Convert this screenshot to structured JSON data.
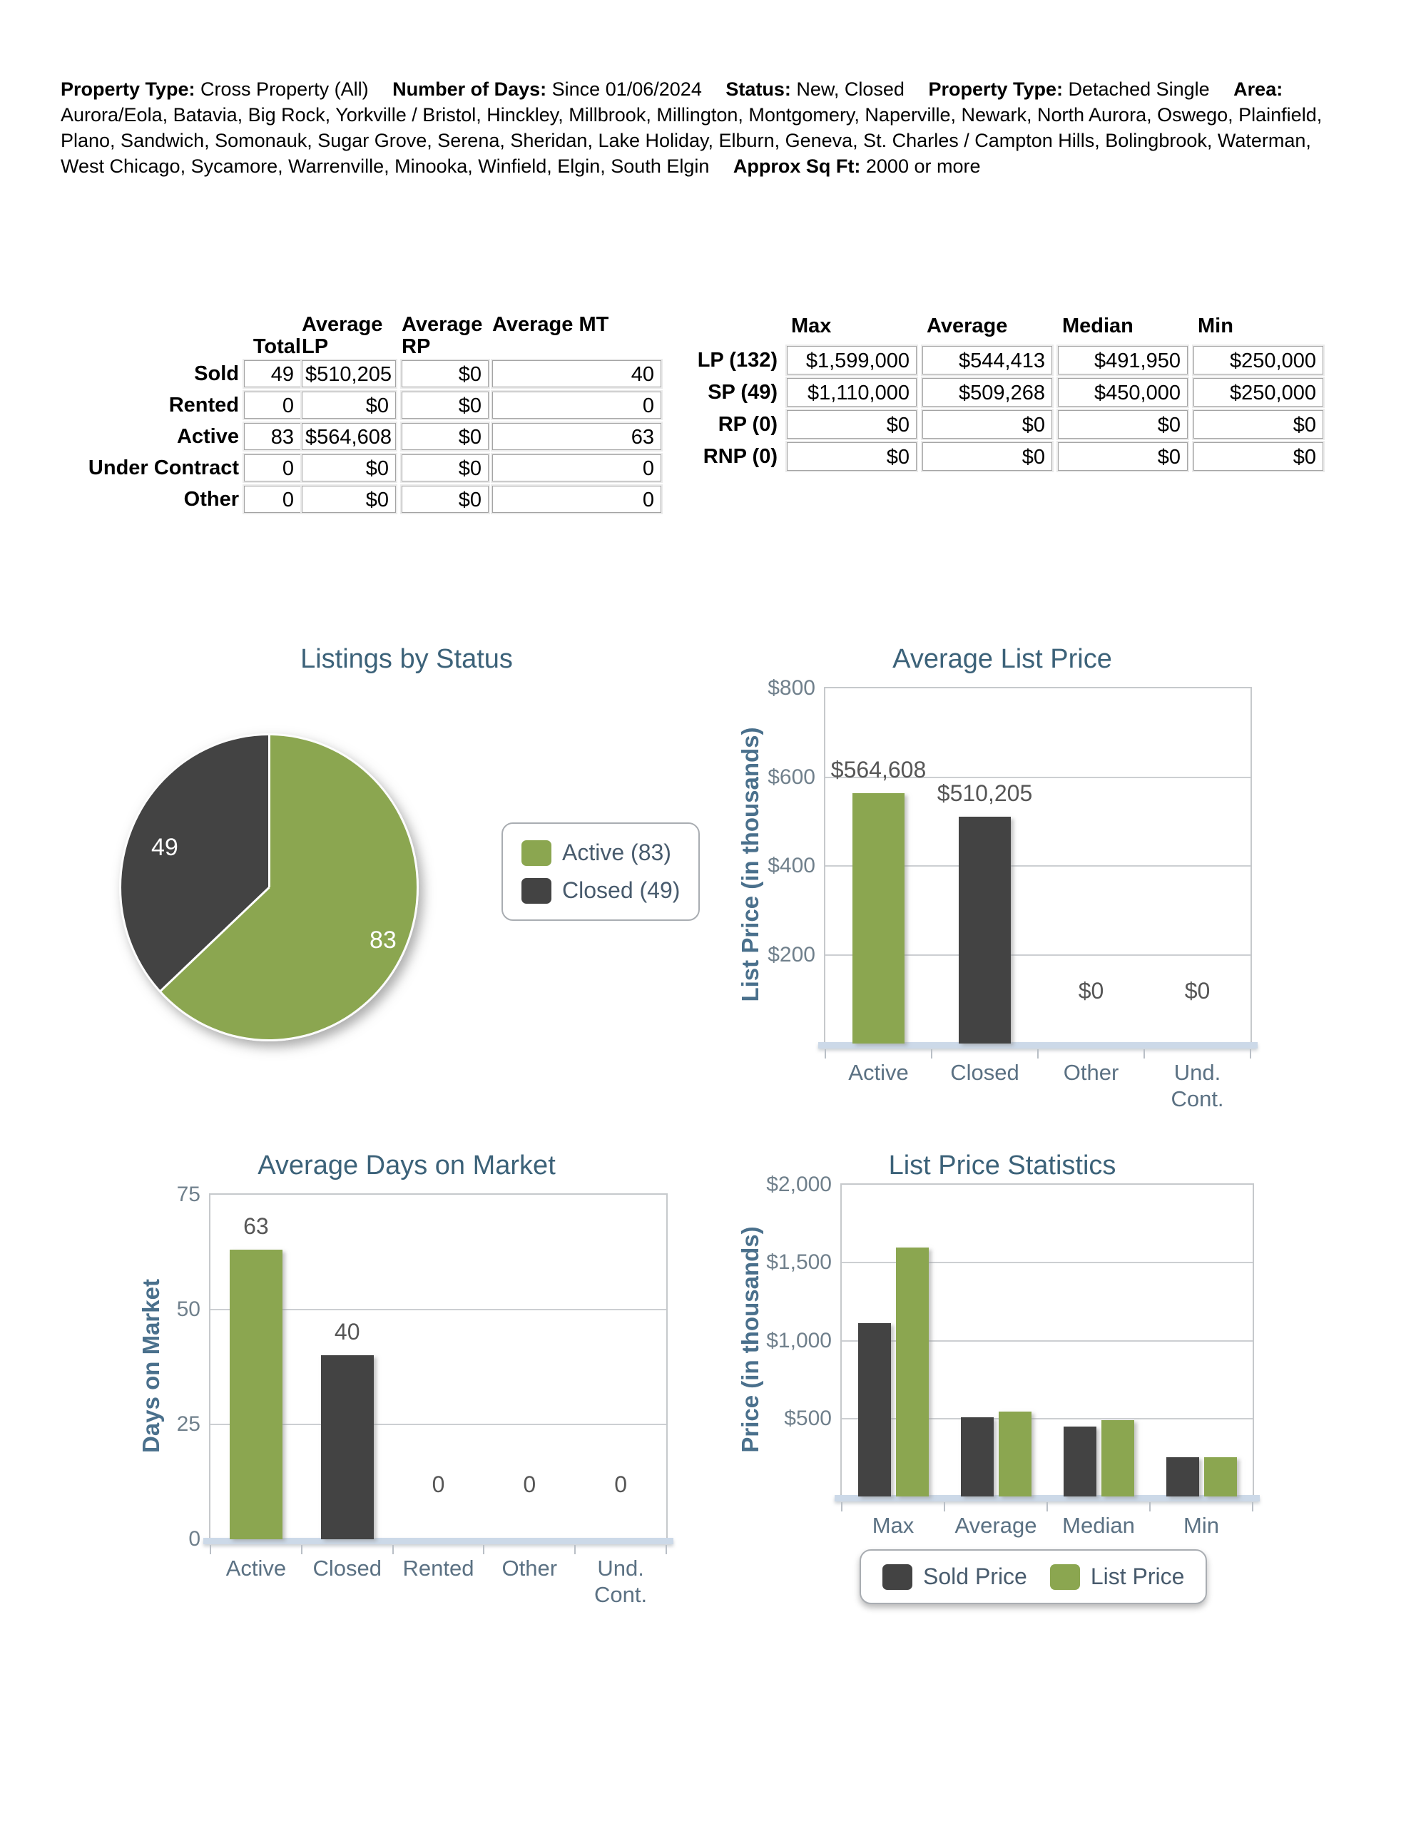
{
  "header": {
    "segments": [
      {
        "label": "Property Type:",
        "value": "Cross Property (All)"
      },
      {
        "label": "Number of Days:",
        "value": "Since 01/06/2024"
      },
      {
        "label": "Status:",
        "value": "New, Closed"
      },
      {
        "label": "Property Type:",
        "value": "Detached Single"
      },
      {
        "label": "Area:",
        "value": "Aurora/Eola, Batavia, Big Rock, Yorkville / Bristol, Hinckley, Millbrook, Millington, Montgomery, Naperville, Newark, North Aurora, Oswego, Plainfield, Plano, Sandwich, Somonauk, Sugar Grove, Serena, Sheridan, Lake Holiday, Elburn, Geneva, St. Charles / Campton Hills, Bolingbrook, Waterman, West Chicago, Sycamore, Warrenville, Minooka, Winfield, Elgin, South Elgin"
      },
      {
        "label": "Approx Sq Ft:",
        "value": "2000 or more"
      }
    ]
  },
  "status_table": {
    "headers": [
      "Total",
      "Average LP",
      "Average RP",
      "Average MT"
    ],
    "rows": [
      {
        "label": "Sold",
        "values": [
          "49",
          "$510,205",
          "$0",
          "40"
        ]
      },
      {
        "label": "Rented",
        "values": [
          "0",
          "$0",
          "$0",
          "0"
        ]
      },
      {
        "label": "Active",
        "values": [
          "83",
          "$564,608",
          "$0",
          "63"
        ]
      },
      {
        "label": "Under Contract",
        "values": [
          "0",
          "$0",
          "$0",
          "0"
        ]
      },
      {
        "label": "Other",
        "values": [
          "0",
          "$0",
          "$0",
          "0"
        ]
      }
    ]
  },
  "price_table": {
    "headers": [
      "Max",
      "Average",
      "Median",
      "Min"
    ],
    "rows": [
      {
        "label": "LP (132)",
        "values": [
          "$1,599,000",
          "$544,413",
          "$491,950",
          "$250,000"
        ]
      },
      {
        "label": "SP (49)",
        "values": [
          "$1,110,000",
          "$509,268",
          "$450,000",
          "$250,000"
        ]
      },
      {
        "label": "RP (0)",
        "values": [
          "$0",
          "$0",
          "$0",
          "$0"
        ]
      },
      {
        "label": "RNP (0)",
        "values": [
          "$0",
          "$0",
          "$0",
          "$0"
        ]
      }
    ]
  },
  "colors": {
    "green": "#8BA650",
    "dark": "#434343",
    "title_blue": "#3C6279",
    "axis_blue": "#4A708C"
  },
  "chart_data": [
    {
      "type": "pie",
      "title": "Listings by Status",
      "labels": [
        "Active",
        "Closed"
      ],
      "values": [
        83,
        49
      ],
      "slice_labels": [
        "83",
        "49"
      ],
      "colors": [
        "#8BA650",
        "#434343"
      ],
      "legend": [
        "Active (83)",
        "Closed (49)"
      ],
      "legend_position": "right"
    },
    {
      "type": "bar",
      "title": "Average List Price",
      "ylabel": "List Price (in thousands)",
      "categories": [
        "Active",
        "Closed",
        "Other",
        "Und. Cont."
      ],
      "values": [
        564.608,
        510.205,
        0,
        0
      ],
      "bar_labels": [
        "$564,608",
        "$510,205",
        "$0",
        "$0"
      ],
      "bar_colors": [
        "#8BA650",
        "#434343",
        "#8BA650",
        "#434343"
      ],
      "ylim": [
        0,
        800
      ],
      "yticks": [
        "$800",
        "$600",
        "$400",
        "$200"
      ],
      "grid": true
    },
    {
      "type": "bar",
      "title": "Average Days on Market",
      "ylabel": "Days on Market",
      "categories": [
        "Active",
        "Closed",
        "Rented",
        "Other",
        "Und. Cont."
      ],
      "values": [
        63,
        40,
        0,
        0,
        0
      ],
      "bar_labels": [
        "63",
        "40",
        "0",
        "0",
        "0"
      ],
      "bar_colors": [
        "#8BA650",
        "#434343",
        "#8BA650",
        "#434343",
        "#8BA650"
      ],
      "ylim": [
        0,
        75
      ],
      "yticks": [
        "75",
        "50",
        "25",
        "0"
      ],
      "grid": true
    },
    {
      "type": "bar",
      "title": "List Price Statistics",
      "ylabel": "Price (in thousands)",
      "categories": [
        "Max",
        "Average",
        "Median",
        "Min"
      ],
      "series": [
        {
          "name": "Sold Price",
          "color": "#434343",
          "values": [
            1110,
            509.268,
            450,
            250
          ]
        },
        {
          "name": "List Price",
          "color": "#8BA650",
          "values": [
            1599,
            544.413,
            491.95,
            250
          ]
        }
      ],
      "ylim": [
        0,
        2000
      ],
      "yticks": [
        "$2,000",
        "$1,500",
        "$1,000",
        "$500"
      ],
      "legend_position": "bottom",
      "grid": true
    }
  ]
}
